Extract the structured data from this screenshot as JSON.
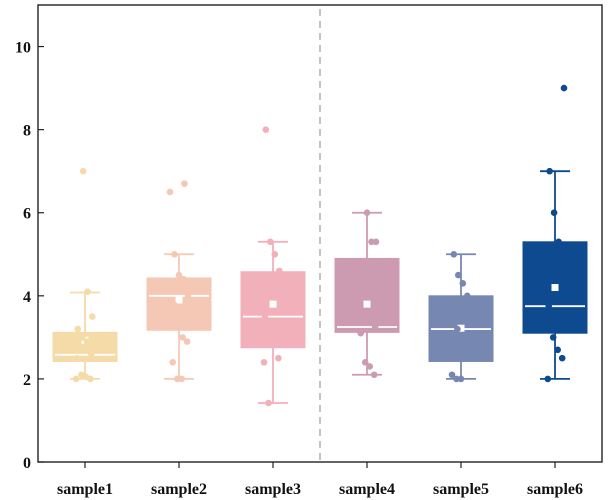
{
  "chart_data": {
    "type": "box",
    "title": "",
    "xlabel": "",
    "ylabel": "",
    "ylim": [
      0,
      11
    ],
    "yticks": [
      "0",
      "2",
      "4",
      "6",
      "8",
      "10"
    ],
    "grid": false,
    "legend": "none",
    "separator_after_category": 3,
    "categories": [
      "sample1",
      "sample2",
      "sample3",
      "sample4",
      "sample5",
      "sample6"
    ],
    "series": [
      {
        "whisker_low": 2.0,
        "q1": 2.42,
        "median": 2.58,
        "q3": 3.12,
        "whisker_high": 4.08,
        "mean": 2.93,
        "points": [
          2.0,
          2.0,
          2.05,
          2.1,
          2.5,
          2.6,
          2.9,
          3.0,
          3.2,
          3.5,
          4.1,
          7.0
        ],
        "color": "#F5DBA8",
        "mean_color": "#ffffff"
      },
      {
        "whisker_low": 2.0,
        "q1": 3.17,
        "median": 4.0,
        "q3": 4.43,
        "whisker_high": 5.0,
        "mean": 3.9,
        "points": [
          2.0,
          2.0,
          2.4,
          2.9,
          3.0,
          3.3,
          3.8,
          4.0,
          4.4,
          4.5,
          5.0,
          6.5,
          6.7
        ],
        "color": "#F5C8B5",
        "mean_color": "#ffffff"
      },
      {
        "whisker_low": 1.42,
        "q1": 2.75,
        "median": 3.5,
        "q3": 4.58,
        "whisker_high": 5.3,
        "mean": 3.8,
        "points": [
          1.42,
          2.4,
          2.5,
          2.9,
          3.3,
          3.5,
          4.6,
          5.0,
          5.3,
          8.0
        ],
        "color": "#F2B0BB",
        "mean_color": "#ffffff"
      },
      {
        "whisker_low": 2.1,
        "q1": 3.12,
        "median": 3.25,
        "q3": 4.9,
        "whisker_high": 6.0,
        "mean": 3.8,
        "points": [
          2.1,
          2.3,
          2.4,
          3.1,
          3.25,
          3.5,
          4.0,
          4.8,
          5.3,
          5.3,
          6.0
        ],
        "color": "#CD9BB1",
        "mean_color": "#ffffff"
      },
      {
        "whisker_low": 2.0,
        "q1": 2.42,
        "median": 3.2,
        "q3": 4.0,
        "whisker_high": 5.0,
        "mean": 3.22,
        "points": [
          2.0,
          2.0,
          2.1,
          2.5,
          3.0,
          3.2,
          3.5,
          4.0,
          4.3,
          4.5,
          5.0
        ],
        "color": "#7688B2",
        "mean_color": "#ffffff"
      },
      {
        "whisker_low": 2.0,
        "q1": 3.1,
        "median": 3.75,
        "q3": 5.3,
        "whisker_high": 7.0,
        "mean": 4.2,
        "points": [
          2.0,
          2.5,
          2.7,
          3.0,
          3.75,
          4.2,
          5.3,
          6.0,
          7.0,
          9.0
        ],
        "color": "#0E4A8F",
        "mean_color": "#ffffff"
      }
    ]
  }
}
